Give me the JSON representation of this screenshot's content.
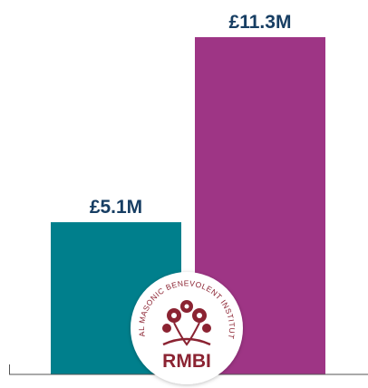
{
  "chart_data": {
    "type": "bar",
    "categories": [
      null,
      null
    ],
    "values": [
      5.1,
      11.3
    ],
    "value_labels": [
      "£5.1M",
      "£11.3M"
    ],
    "colors": [
      "#007f8c",
      "#9e3585"
    ],
    "logo": {
      "ring_text": "ROYAL MASONIC BENEVOLENT INSTITUTION",
      "text": "RMBI"
    }
  }
}
